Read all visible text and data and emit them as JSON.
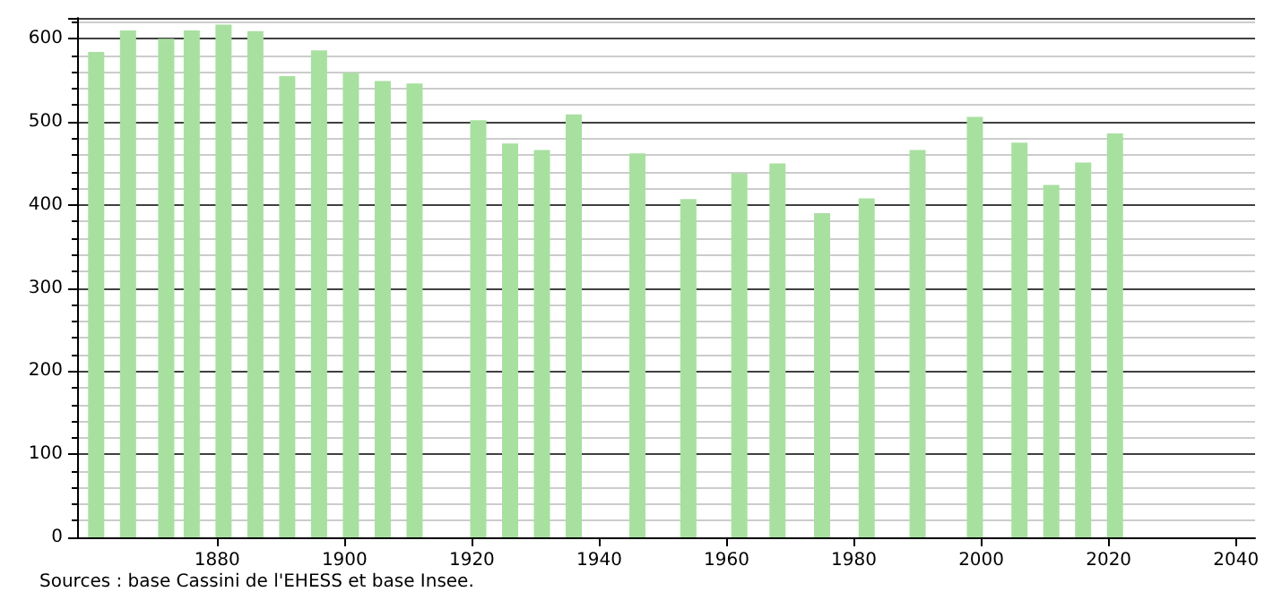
{
  "chart_data": {
    "type": "bar",
    "color": "#a8e0a0",
    "x": [
      1861,
      1866,
      1872,
      1876,
      1881,
      1886,
      1891,
      1896,
      1901,
      1906,
      1911,
      1921,
      1926,
      1931,
      1936,
      1946,
      1954,
      1962,
      1968,
      1975,
      1982,
      1990,
      1999,
      2006,
      2011,
      2016,
      2021
    ],
    "values": [
      584,
      610,
      600,
      610,
      617,
      609,
      555,
      586,
      559,
      549,
      546,
      502,
      474,
      466,
      509,
      462,
      407,
      438,
      450,
      390,
      408,
      466,
      506,
      475,
      424,
      451,
      486
    ],
    "xlim": [
      1858,
      2043
    ],
    "xticks": [
      1880,
      1900,
      1920,
      1940,
      1960,
      1980,
      2000,
      2020,
      2040
    ],
    "ylim": [
      0,
      625
    ],
    "yticks": [
      0,
      100,
      200,
      300,
      400,
      500,
      600
    ],
    "grid": "y",
    "annotations": [
      "Sources : base Cassini de l'EHESS et base Insee."
    ]
  }
}
